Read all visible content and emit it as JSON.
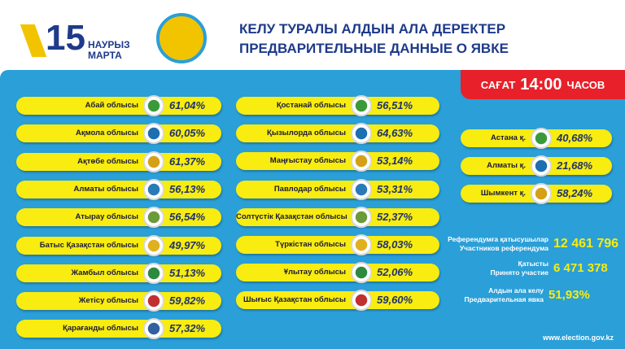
{
  "header": {
    "logo_number": "15",
    "logo_line1": "НАУРЫЗ",
    "logo_line2": "МАРТА",
    "title_kz": "КЕЛУ ТУРАЛЫ АЛДЫН АЛА ДЕРЕКТЕР",
    "title_ru": "ПРЕДВАРИТЕЛЬНЫЕ ДАННЫЕ О ЯВКЕ"
  },
  "time_badge": {
    "before": "САҒАТ",
    "time": "14:00",
    "after": "ЧАСОВ"
  },
  "regions_left": [
    {
      "name": "Абай облысы",
      "turnout": "61,04%"
    },
    {
      "name": "Ақмола облысы",
      "turnout": "60,05%"
    },
    {
      "name": "Ақтөбе облысы",
      "turnout": "61,37%"
    },
    {
      "name": "Алматы облысы",
      "turnout": "56,13%"
    },
    {
      "name": "Атырау облысы",
      "turnout": "56,54%"
    },
    {
      "name": "Батыс Қазақстан облысы",
      "turnout": "49,97%"
    },
    {
      "name": "Жамбыл облысы",
      "turnout": "51,13%"
    },
    {
      "name": "Жетісу облысы",
      "turnout": "59,82%"
    },
    {
      "name": "Қарағанды облысы",
      "turnout": "57,32%"
    }
  ],
  "regions_middle": [
    {
      "name": "Қостанай облысы",
      "turnout": "56,51%"
    },
    {
      "name": "Қызылорда облысы",
      "turnout": "64,63%"
    },
    {
      "name": "Маңғыстау облысы",
      "turnout": "53,14%"
    },
    {
      "name": "Павлодар облысы",
      "turnout": "53,31%"
    },
    {
      "name": "Солтүстік Қазақстан облысы",
      "turnout": "52,37%"
    },
    {
      "name": "Түркістан облысы",
      "turnout": "58,03%"
    },
    {
      "name": "Ұлытау облысы",
      "turnout": "52,06%"
    },
    {
      "name": "Шығыс Қазақстан облысы",
      "turnout": "59,60%"
    }
  ],
  "cities": [
    {
      "name": "Астана қ.",
      "turnout": "40,68%"
    },
    {
      "name": "Алматы қ.",
      "turnout": "21,68%"
    },
    {
      "name": "Шымкент қ.",
      "turnout": "58,24%"
    }
  ],
  "stats": [
    {
      "label_kz": "Референдумға қатысушылар",
      "label_ru": "Участников референдума",
      "value": "12 461 796"
    },
    {
      "label_kz": "Қатысты",
      "label_ru": "Принято участие",
      "value": "6 471 378"
    },
    {
      "label_kz": "Алдын ала келу",
      "label_ru": "Предварительная явка",
      "value": "51,93%"
    }
  ],
  "website": "www.election.gov.kz"
}
